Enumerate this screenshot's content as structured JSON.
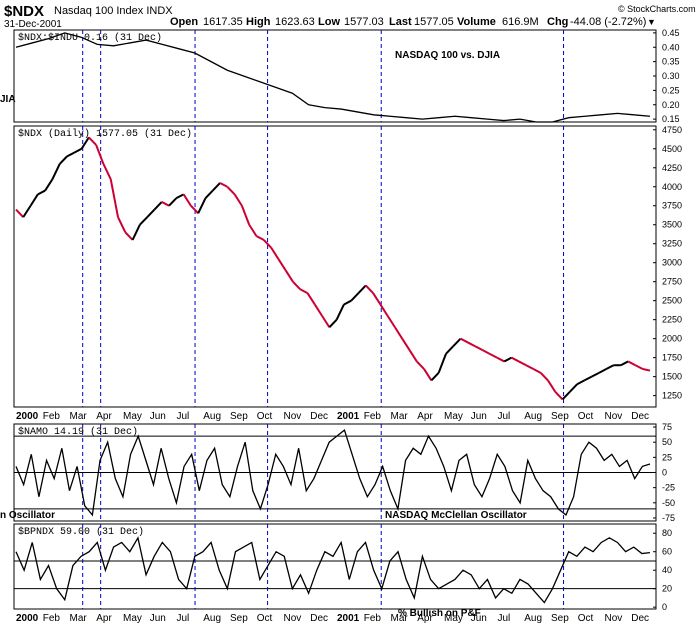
{
  "header": {
    "symbol": "$NDX",
    "name": "Nasdaq 100 Index  INDX",
    "date": "31-Dec-2001",
    "open_label": "Open",
    "open": "1617.35",
    "high_label": "High",
    "high": "1623.63",
    "low_label": "Low",
    "low": "1577.03",
    "last_label": "Last",
    "last": "1577.05",
    "volume_label": "Volume",
    "volume": "616.9M",
    "chg_label": "Chg",
    "chg": "-44.08 (-2.72%)",
    "chg_marker": "▼",
    "watermark": "© StockCharts.com",
    "colors": {
      "down": "#cc0000",
      "vline": "#0000cc",
      "price_down": "#cc0033"
    }
  },
  "chart_data": [
    {
      "type": "line",
      "panel": "ratio",
      "legend_text": "$NDX:$INDU 0.16 (31 Dec)",
      "annotation": "NASDAQ 100 vs. DJIA",
      "left_label": "JIA",
      "yticks": [
        "0.45",
        "0.40",
        "0.35",
        "0.30",
        "0.25",
        "0.20",
        "0.15"
      ],
      "ylim": [
        0.14,
        0.46
      ],
      "x_months": 24,
      "series": [
        {
          "values": [
            0.4,
            0.415,
            0.43,
            0.45,
            0.435,
            0.41,
            0.405,
            0.415,
            0.425,
            0.41,
            0.395,
            0.38,
            0.35,
            0.32,
            0.3,
            0.28,
            0.26,
            0.24,
            0.2,
            0.19,
            0.185,
            0.175,
            0.165,
            0.16,
            0.155,
            0.15,
            0.155,
            0.16,
            0.155,
            0.15,
            0.145,
            0.15,
            0.14,
            0.14,
            0.155,
            0.16,
            0.165,
            0.17,
            0.165,
            0.16
          ]
        }
      ]
    },
    {
      "type": "line",
      "panel": "price",
      "legend_text": "$NDX (Daily) 1577.05 (31 Dec)",
      "yticks": [
        "4750",
        "4500",
        "4250",
        "4000",
        "3750",
        "3500",
        "3250",
        "3000",
        "2750",
        "2500",
        "2250",
        "2000",
        "1750",
        "1500",
        "1250"
      ],
      "ylim": [
        1100,
        4800
      ],
      "x_months": 24,
      "series": [
        {
          "values": [
            3700,
            3600,
            3750,
            3900,
            3950,
            4100,
            4300,
            4400,
            4450,
            4500,
            4650,
            4550,
            4300,
            4100,
            3600,
            3400,
            3300,
            3500,
            3600,
            3700,
            3800,
            3750,
            3850,
            3900,
            3750,
            3650,
            3850,
            3950,
            4050,
            4000,
            3900,
            3750,
            3500,
            3350,
            3300,
            3200,
            3050,
            2900,
            2750,
            2650,
            2600,
            2450,
            2300,
            2150,
            2250,
            2450,
            2500,
            2600,
            2700,
            2600,
            2450,
            2300,
            2150,
            2000,
            1850,
            1700,
            1600,
            1450,
            1550,
            1800,
            1900,
            2000,
            1950,
            1900,
            1850,
            1800,
            1750,
            1700,
            1750,
            1700,
            1650,
            1600,
            1550,
            1450,
            1300,
            1200,
            1300,
            1400,
            1450,
            1500,
            1550,
            1600,
            1650,
            1650,
            1700,
            1650,
            1600,
            1580
          ]
        }
      ],
      "x_labels": [
        "2000",
        "Feb",
        "Mar",
        "Apr",
        "May",
        "Jun",
        "Jul",
        "Aug",
        "Sep",
        "Oct",
        "Nov",
        "Dec",
        "2001",
        "Feb",
        "Mar",
        "Apr",
        "May",
        "Jun",
        "Jul",
        "Aug",
        "Sep",
        "Oct",
        "Nov",
        "Dec"
      ]
    },
    {
      "type": "line",
      "panel": "namo",
      "legend_text": "$NAMO 14.19 (31 Dec)",
      "annotation": "NASDAQ McClellan Oscillator",
      "left_label": "n Oscillator",
      "yticks": [
        "75",
        "50",
        "25",
        "0",
        "-25",
        "-50",
        "-75"
      ],
      "ylim": [
        -80,
        80
      ],
      "hlines": [
        60,
        0,
        -60
      ],
      "x_months": 24,
      "series": [
        {
          "values": [
            10,
            -20,
            30,
            -40,
            20,
            -10,
            40,
            -30,
            10,
            -55,
            -70,
            20,
            50,
            -10,
            -40,
            30,
            60,
            20,
            -20,
            40,
            -10,
            -50,
            10,
            30,
            -30,
            20,
            40,
            -20,
            -40,
            10,
            50,
            -30,
            -60,
            -20,
            30,
            10,
            -20,
            40,
            -30,
            -10,
            20,
            50,
            60,
            70,
            30,
            -10,
            -40,
            -20,
            10,
            -30,
            -60,
            20,
            40,
            30,
            60,
            40,
            10,
            -30,
            20,
            30,
            -20,
            -40,
            -10,
            30,
            10,
            -30,
            -50,
            20,
            -10,
            -30,
            -40,
            -60,
            -70,
            -40,
            30,
            50,
            40,
            20,
            30,
            10,
            20,
            -10,
            10,
            14
          ]
        }
      ]
    },
    {
      "type": "line",
      "panel": "bpndx",
      "legend_text": "$BPNDX 59.00 (31 Dec)",
      "annotation": "% Bullish on P&F",
      "yticks": [
        "80",
        "60",
        "40",
        "20",
        "0"
      ],
      "ylim": [
        -2,
        90
      ],
      "hlines": [
        50,
        20
      ],
      "x_months": 24,
      "series": [
        {
          "values": [
            60,
            40,
            70,
            30,
            45,
            20,
            8,
            45,
            55,
            60,
            70,
            40,
            65,
            70,
            60,
            75,
            35,
            55,
            70,
            60,
            30,
            20,
            55,
            60,
            70,
            40,
            20,
            60,
            65,
            70,
            30,
            45,
            60,
            55,
            20,
            35,
            15,
            40,
            60,
            55,
            70,
            30,
            60,
            70,
            40,
            20,
            50,
            60,
            30,
            10,
            55,
            30,
            20,
            25,
            30,
            40,
            35,
            20,
            30,
            10,
            20,
            15,
            30,
            25,
            15,
            5,
            20,
            40,
            60,
            55,
            65,
            60,
            70,
            75,
            70,
            60,
            65,
            58,
            59
          ]
        }
      ],
      "x_labels": [
        "2000",
        "Feb",
        "Mar",
        "Apr",
        "May",
        "Jun",
        "Jul",
        "Aug",
        "Sep",
        "Oct",
        "Nov",
        "Dec",
        "2001",
        "Feb",
        "Mar",
        "Apr",
        "May",
        "Jun",
        "Jul",
        "Aug",
        "Sep",
        "Oct",
        "Nov",
        "Dec"
      ]
    }
  ]
}
